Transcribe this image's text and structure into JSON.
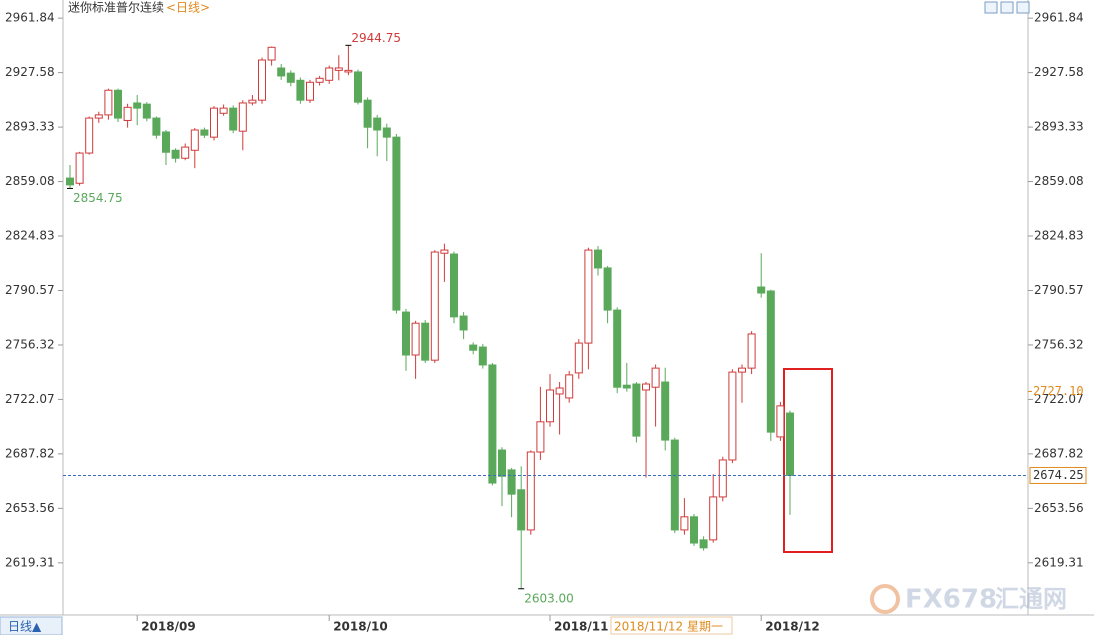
{
  "chart_data": {
    "type": "candlestick",
    "title": "迷你标准普尔连续",
    "period": "<日线>",
    "period_selector": "日线▲",
    "watermark": [
      "FX678",
      "汇通网"
    ],
    "categories": [
      null,
      null,
      null,
      null,
      null,
      null,
      null,
      "2018/09",
      null,
      null,
      null,
      null,
      null,
      null,
      null,
      null,
      null,
      null,
      null,
      null,
      null,
      null,
      null,
      null,
      null,
      null,
      null,
      "2018/10",
      null,
      null,
      null,
      null,
      null,
      null,
      null,
      null,
      null,
      null,
      null,
      null,
      null,
      null,
      null,
      null,
      null,
      null,
      null,
      null,
      null,
      null,
      "2018/11",
      null,
      null,
      null,
      null,
      null,
      null,
      null,
      null,
      null,
      null,
      null,
      null,
      null,
      null,
      null,
      null,
      null,
      null,
      null,
      null,
      null,
      "2018/12",
      null,
      null,
      null
    ],
    "open": [
      2861.25,
      2858.0,
      2877.0,
      2899.0,
      2901.0,
      2916.5,
      2897.5,
      2908.5,
      2907.75,
      2899.0,
      2890.25,
      2878.75,
      2873.75,
      2878.75,
      2891.5,
      2887.0,
      2902.0,
      2905.25,
      2890.75,
      2908.5,
      2910.25,
      2935.5,
      2930.5,
      2927.25,
      2922.75,
      2910.25,
      2921.5,
      2922.75,
      2929.0,
      2928.0,
      2928.0,
      2910.25,
      2899.0,
      2892.75,
      2887.0,
      2777.0,
      2750.0,
      2770.0,
      2746.75,
      2814.0,
      2813.5,
      2774.5,
      2756.25,
      2755.0,
      2743.75,
      2690.25,
      2677.75,
      2665.25,
      2640.0,
      2689.0,
      2708.0,
      2725.5,
      2723.0,
      2738.75,
      2757.5,
      2816.0,
      2804.75,
      2778.25,
      2731.0,
      2731.75,
      2728.0,
      2729.75,
      2733.0,
      2696.5,
      2640.0,
      2648.25,
      2633.75,
      2633.75,
      2660.75,
      2684.0,
      2739.25,
      2741.75,
      2792.75,
      2790.25,
      2698.5,
      2713.5
    ],
    "high": [
      2869.5,
      2877.75,
      2900.0,
      2903.0,
      2917.5,
      2917.5,
      2908.0,
      2913.5,
      2909.0,
      2900.0,
      2891.5,
      2880.0,
      2883.0,
      2892.75,
      2893.0,
      2906.5,
      2907.5,
      2907.0,
      2910.25,
      2913.5,
      2937.0,
      2944.0,
      2933.0,
      2929.0,
      2924.5,
      2923.0,
      2925.5,
      2932.0,
      2938.5,
      2944.75,
      2929.5,
      2912.0,
      2901.0,
      2895.5,
      2889.0,
      2779.0,
      2771.5,
      2772.0,
      2816.0,
      2820.0,
      2815.0,
      2777.0,
      2758.0,
      2757.0,
      2745.0,
      2692.0,
      2679.0,
      2680.0,
      2690.0,
      2730.0,
      2738.0,
      2733.0,
      2740.0,
      2760.0,
      2817.5,
      2818.5,
      2806.0,
      2780.0,
      2745.0,
      2733.0,
      2733.0,
      2744.0,
      2742.0,
      2698.0,
      2660.0,
      2650.0,
      2636.0,
      2675.0,
      2686.0,
      2741.0,
      2744.0,
      2765.0,
      2814.0,
      2791.0,
      2720.5,
      2715.0
    ],
    "low": [
      2854.75,
      2856.5,
      2876.0,
      2896.0,
      2898.0,
      2896.5,
      2893.0,
      2894.5,
      2897.0,
      2886.0,
      2869.5,
      2871.0,
      2872.5,
      2867.5,
      2886.5,
      2885.0,
      2900.5,
      2889.5,
      2878.75,
      2907.0,
      2908.0,
      2932.0,
      2923.0,
      2919.0,
      2908.0,
      2908.5,
      2919.5,
      2920.5,
      2922.75,
      2926.0,
      2907.5,
      2880.0,
      2875.0,
      2872.0,
      2776.0,
      2740.0,
      2735.0,
      2745.0,
      2745.0,
      2796.0,
      2770.0,
      2760.0,
      2750.5,
      2741.5,
      2668.0,
      2655.0,
      2648.0,
      2603.0,
      2637.0,
      2684.0,
      2705.0,
      2700.0,
      2720.0,
      2735.0,
      2741.0,
      2800.0,
      2770.0,
      2726.0,
      2727.0,
      2695.0,
      2673.0,
      2705.0,
      2690.0,
      2638.0,
      2637.0,
      2630.0,
      2627.0,
      2632.0,
      2658.0,
      2682.0,
      2720.0,
      2738.0,
      2786.0,
      2696.0,
      2696.0,
      2649.5
    ],
    "close": [
      2857.0,
      2877.0,
      2899.0,
      2901.0,
      2916.5,
      2899.0,
      2905.75,
      2905.25,
      2899.0,
      2888.25,
      2877.5,
      2873.75,
      2880.75,
      2891.5,
      2888.25,
      2905.25,
      2905.25,
      2891.5,
      2908.5,
      2910.25,
      2935.5,
      2943.5,
      2925.5,
      2921.5,
      2910.25,
      2921.5,
      2924.0,
      2930.5,
      2930.5,
      2929.0,
      2909.0,
      2893.25,
      2891.5,
      2887.0,
      2778.25,
      2750.0,
      2770.0,
      2746.75,
      2814.75,
      2816.0,
      2774.0,
      2765.75,
      2753.0,
      2743.75,
      2669.5,
      2673.75,
      2662.5,
      2640.0,
      2689.0,
      2708.0,
      2728.0,
      2729.25,
      2737.5,
      2757.5,
      2816.0,
      2804.75,
      2778.25,
      2729.75,
      2729.25,
      2699.0,
      2731.75,
      2741.75,
      2696.5,
      2640.0,
      2648.25,
      2631.75,
      2628.75,
      2660.75,
      2684.0,
      2739.25,
      2741.75,
      2763.25,
      2789.0,
      2701.5,
      2718.0,
      2674.25
    ],
    "up_color": "#d03a3a",
    "down_color": "#5aa85a",
    "ylim": [
      2586.5,
      2973.25
    ],
    "yticks": [
      2961.84,
      2927.58,
      2893.33,
      2859.08,
      2824.83,
      2790.57,
      2756.32,
      2722.07,
      2687.82,
      2653.56,
      2619.31
    ],
    "annotations": [
      {
        "text": "2944.75",
        "value": 2944.75,
        "color": "#d03a3a"
      },
      {
        "text": "2854.75",
        "value": 2854.75,
        "color": "#5aa85a"
      },
      {
        "text": "2603.00",
        "value": 2603.0,
        "color": "#5aa85a"
      }
    ],
    "last_price": {
      "value": 2674.25,
      "label": "2674.25"
    },
    "crosshair": {
      "value": 2727.1,
      "label": "2727.10",
      "date": "2018/11/12 星期一"
    }
  }
}
